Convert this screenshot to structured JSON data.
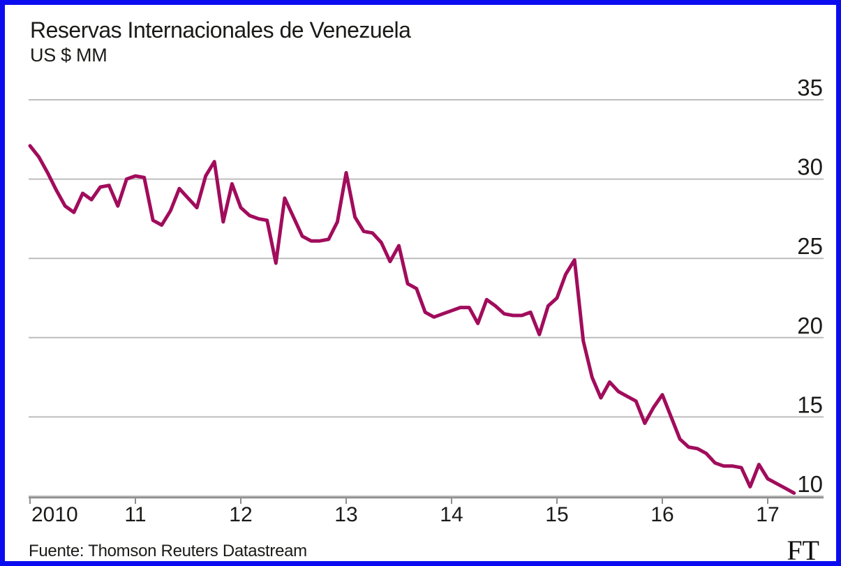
{
  "page": {
    "border_color": "#0b0bf0",
    "background": "#ffffff"
  },
  "header": {
    "title": "Reservas Internacionales de Venezuela",
    "subtitle": "US $ MM"
  },
  "footer": {
    "source": "Fuente: Thomson Reuters Datastream",
    "brand": "FT"
  },
  "chart_data": {
    "type": "line",
    "title": "Reservas Internacionales de Venezuela",
    "ylabel": "US $ MM",
    "xlabel": "",
    "legend": "none",
    "grid": "horizontal",
    "y_axis_side": "right",
    "ylim": [
      10,
      35
    ],
    "y_ticks": [
      35,
      30,
      25,
      20,
      15,
      10
    ],
    "x_tick_labels": [
      "2010",
      "11",
      "12",
      "13",
      "14",
      "15",
      "16",
      "17"
    ],
    "x_tick_month_index": [
      0,
      12,
      24,
      36,
      48,
      60,
      72,
      84
    ],
    "x_start": "2010-01",
    "x_frequency": "monthly",
    "colors": {
      "line": "#a10c5c",
      "gridline": "#bdbdbd",
      "axis": "#8f8f8f",
      "text": "#1a1a18"
    },
    "series": [
      {
        "name": "Reservas internacionales (US$ MM)",
        "values": [
          32.1,
          31.4,
          30.4,
          29.3,
          28.3,
          27.9,
          29.1,
          28.7,
          29.5,
          29.6,
          28.3,
          30.0,
          30.2,
          30.1,
          27.4,
          27.1,
          28.0,
          29.4,
          28.8,
          28.2,
          30.2,
          31.1,
          27.3,
          29.7,
          28.2,
          27.7,
          27.5,
          27.4,
          24.7,
          28.8,
          27.6,
          26.4,
          26.1,
          26.1,
          26.2,
          27.3,
          30.4,
          27.6,
          26.7,
          26.6,
          26.0,
          24.8,
          25.8,
          23.4,
          23.1,
          21.6,
          21.3,
          21.5,
          21.7,
          21.9,
          21.9,
          20.9,
          22.4,
          22.0,
          21.5,
          21.4,
          21.4,
          21.6,
          20.2,
          22.0,
          22.5,
          24.0,
          24.9,
          19.8,
          17.5,
          16.2,
          17.2,
          16.6,
          16.3,
          16.0,
          14.6,
          15.6,
          16.4,
          15.0,
          13.6,
          13.1,
          13.0,
          12.7,
          12.1,
          11.9,
          11.9,
          11.8,
          10.6,
          12.0,
          11.1,
          10.8,
          10.5,
          10.2
        ]
      }
    ]
  }
}
